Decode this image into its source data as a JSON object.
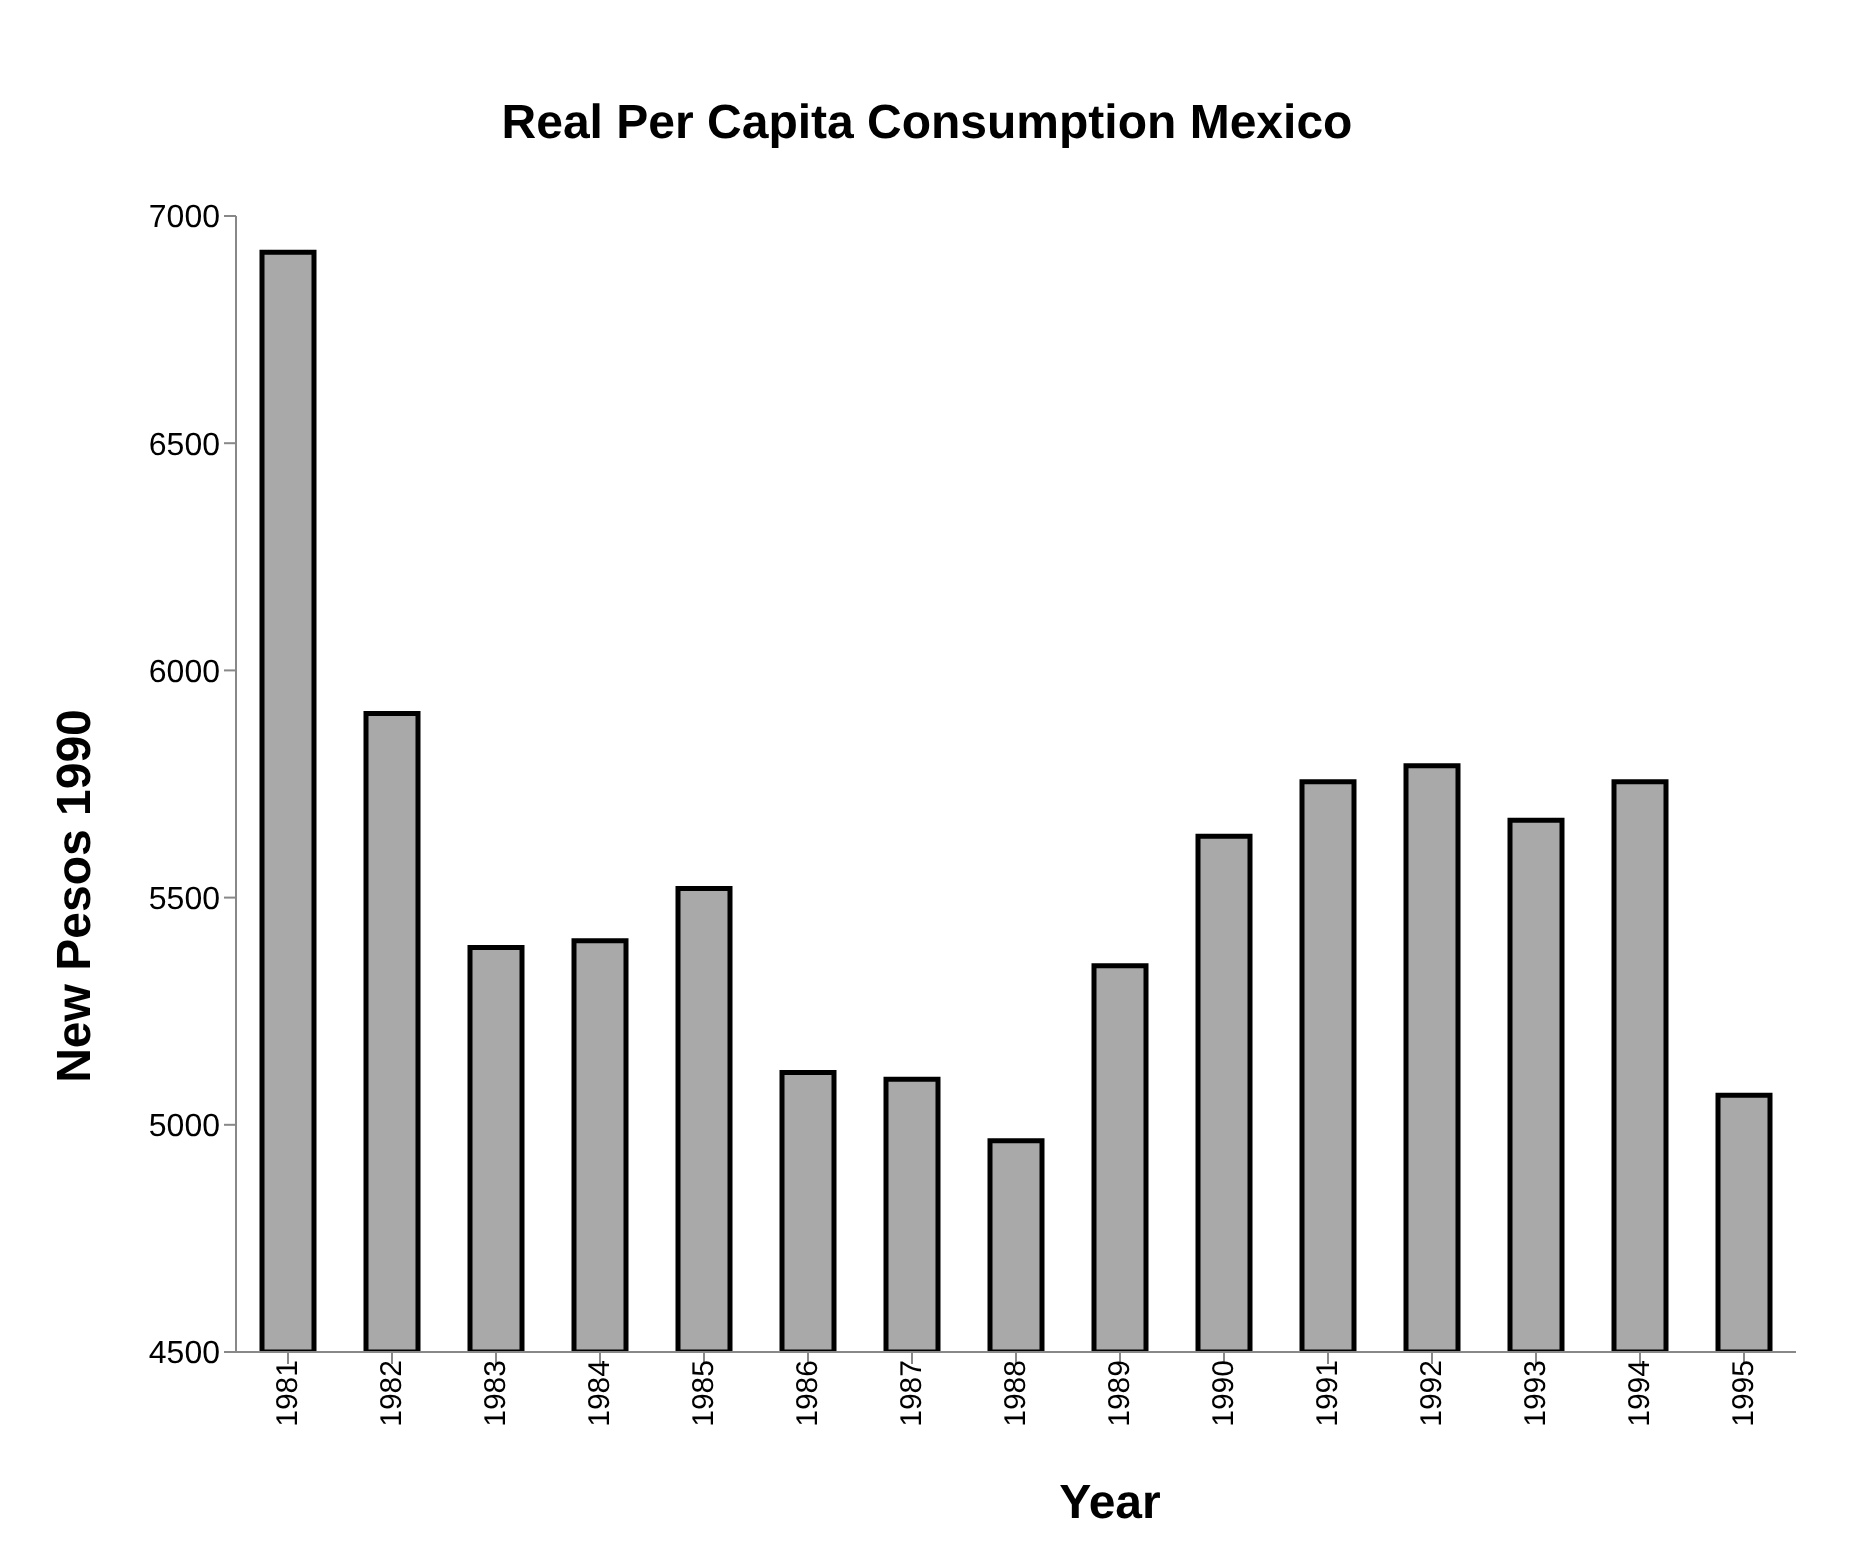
{
  "chart_data": {
    "type": "bar",
    "title": "Real Per Capita Consumption Mexico",
    "xlabel": "Year",
    "ylabel": "New Pesos 1990",
    "categories": [
      "1981",
      "1982",
      "1983",
      "1984",
      "1985",
      "1986",
      "1987",
      "1988",
      "1989",
      "1990",
      "1991",
      "1992",
      "1993",
      "1994",
      "1995"
    ],
    "values": [
      6920,
      5905,
      5390,
      5405,
      5520,
      5115,
      5100,
      4965,
      5350,
      5635,
      5755,
      5790,
      5670,
      5755,
      5065
    ],
    "color": "#a9a9a9",
    "ylim": [
      4500,
      7000
    ],
    "yticks": [
      4500,
      5000,
      5500,
      6000,
      6500,
      7000
    ],
    "grid": false,
    "legend": false
  }
}
